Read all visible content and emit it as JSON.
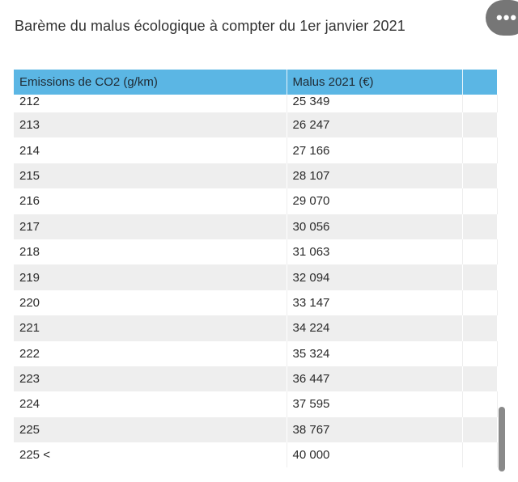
{
  "title": "Barème du malus écologique à compter du 1er janvier 2021",
  "more_button_icon": "more-horizontal-icon",
  "table": {
    "headers": [
      "Emissions de CO2 (g/km)",
      "Malus 2021 (€)",
      ""
    ],
    "rows": [
      {
        "emissions": "212",
        "malus": "25 349"
      },
      {
        "emissions": "213",
        "malus": "26 247"
      },
      {
        "emissions": "214",
        "malus": "27 166"
      },
      {
        "emissions": "215",
        "malus": "28 107"
      },
      {
        "emissions": "216",
        "malus": "29 070"
      },
      {
        "emissions": "217",
        "malus": "30 056"
      },
      {
        "emissions": "218",
        "malus": "31 063"
      },
      {
        "emissions": "219",
        "malus": "32 094"
      },
      {
        "emissions": "220",
        "malus": "33 147"
      },
      {
        "emissions": "221",
        "malus": "34 224"
      },
      {
        "emissions": "222",
        "malus": "35 324"
      },
      {
        "emissions": "223",
        "malus": "36 447"
      },
      {
        "emissions": "224",
        "malus": "37 595"
      },
      {
        "emissions": "225",
        "malus": "38 767"
      },
      {
        "emissions": "225 <",
        "malus": "40 000"
      }
    ]
  },
  "colors": {
    "header_bg": "#5bb6e4",
    "stripe_bg": "#eeeeee",
    "more_button_bg": "#767676",
    "scrollbar": "#8a8a8a"
  }
}
